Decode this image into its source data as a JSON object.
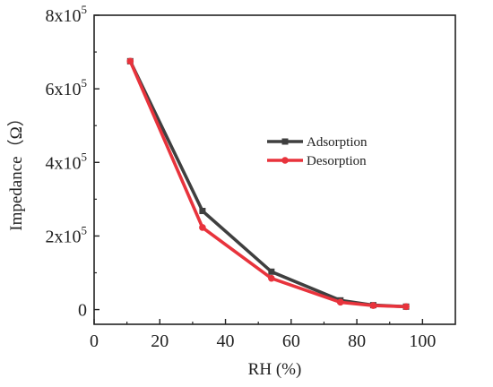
{
  "chart_data": {
    "type": "line",
    "xlabel": "RH (%)",
    "ylabel": "Impedance（Ω）",
    "xlim": [
      0,
      110
    ],
    "ylim": [
      -40000,
      800000
    ],
    "x_ticks": [
      0,
      20,
      40,
      60,
      80,
      100
    ],
    "x_tick_labels": [
      "0",
      "20",
      "40",
      "60",
      "80",
      "100"
    ],
    "y_ticks": [
      0,
      200000,
      400000,
      600000,
      800000
    ],
    "y_tick_labels": [
      {
        "mantissa": "0",
        "exp": ""
      },
      {
        "mantissa": "2x10",
        "exp": "5"
      },
      {
        "mantissa": "4x10",
        "exp": "5"
      },
      {
        "mantissa": "6x10",
        "exp": "5"
      },
      {
        "mantissa": "8x10",
        "exp": "5"
      }
    ],
    "grid": false,
    "legend_position": "center-right",
    "series": [
      {
        "name": "Adsorption",
        "color": "#3f3f3f",
        "marker": "square",
        "x": [
          11,
          33,
          54,
          75,
          85,
          95
        ],
        "y": [
          675000,
          268000,
          103000,
          25000,
          12000,
          8000
        ]
      },
      {
        "name": "Desorption",
        "color": "#e8333c",
        "marker": "circle",
        "x": [
          11,
          33,
          54,
          75,
          85,
          95
        ],
        "y": [
          675000,
          223000,
          85000,
          20000,
          11000,
          8000
        ]
      }
    ]
  }
}
